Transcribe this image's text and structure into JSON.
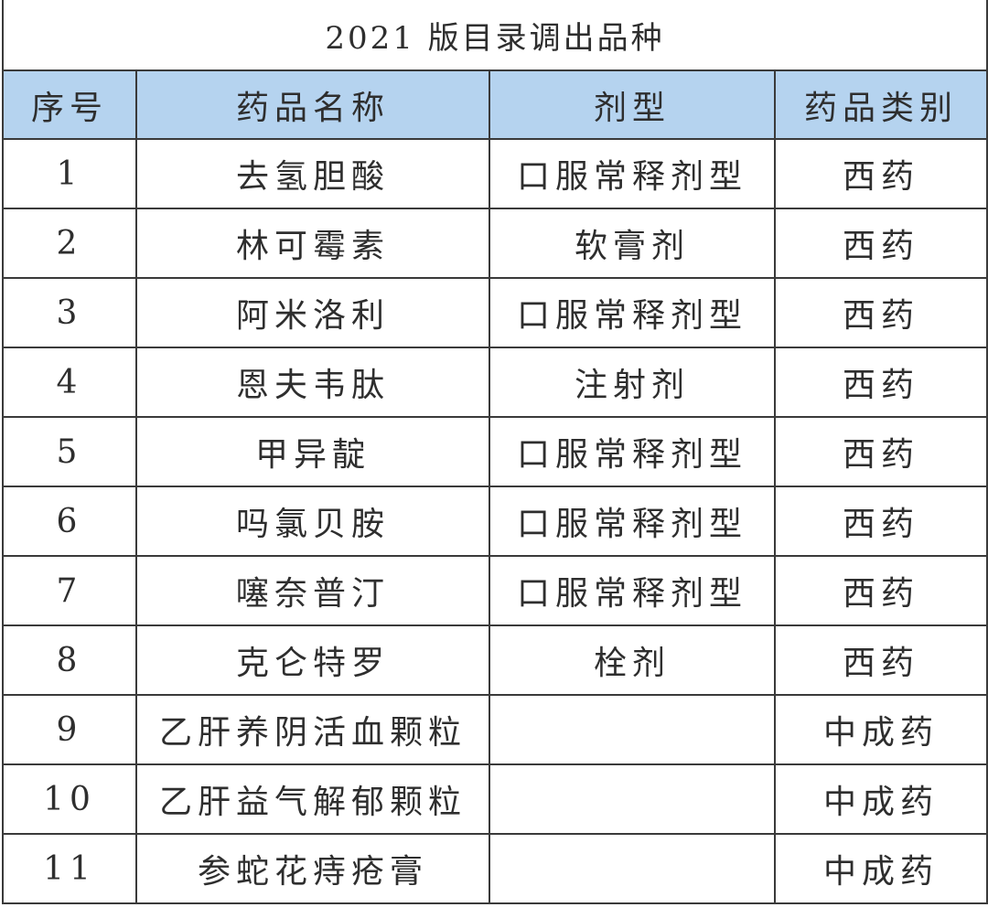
{
  "title": "2021 版目录调出品种",
  "columns": [
    "序号",
    "药品名称",
    "剂型",
    "药品类别"
  ],
  "rows": [
    {
      "no": "1",
      "name": "去氢胆酸",
      "form": "口服常释剂型",
      "category": "西药"
    },
    {
      "no": "2",
      "name": "林可霉素",
      "form": "软膏剂",
      "category": "西药"
    },
    {
      "no": "3",
      "name": "阿米洛利",
      "form": "口服常释剂型",
      "category": "西药"
    },
    {
      "no": "4",
      "name": "恩夫韦肽",
      "form": "注射剂",
      "category": "西药"
    },
    {
      "no": "5",
      "name": "甲异靛",
      "form": "口服常释剂型",
      "category": "西药"
    },
    {
      "no": "6",
      "name": "吗氯贝胺",
      "form": "口服常释剂型",
      "category": "西药"
    },
    {
      "no": "7",
      "name": "噻奈普汀",
      "form": "口服常释剂型",
      "category": "西药"
    },
    {
      "no": "8",
      "name": "克仑特罗",
      "form": "栓剂",
      "category": "西药"
    },
    {
      "no": "9",
      "name": "乙肝养阴活血颗粒",
      "form": "",
      "category": "中成药"
    },
    {
      "no": "10",
      "name": "乙肝益气解郁颗粒",
      "form": "",
      "category": "中成药"
    },
    {
      "no": "11",
      "name": "参蛇花痔疮膏",
      "form": "",
      "category": "中成药"
    }
  ],
  "colors": {
    "header_bg": "#b5d3ef",
    "border": "#3a3a3a",
    "text": "#2e2e2e"
  }
}
